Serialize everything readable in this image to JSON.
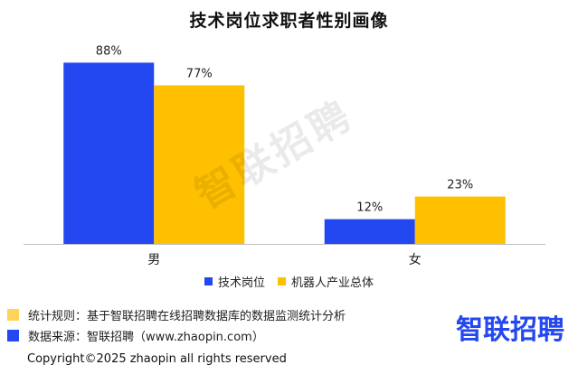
{
  "title": "技术岗位求职者性别画像",
  "chart_data": {
    "type": "bar",
    "title": "技术岗位求职者性别画像",
    "categories": [
      "男",
      "女"
    ],
    "series": [
      {
        "name": "技术岗位",
        "values": [
          88,
          12
        ],
        "labels": [
          "88%",
          "12%"
        ],
        "color": "#2347f0"
      },
      {
        "name": "机器人产业总体",
        "values": [
          77,
          23
        ],
        "labels": [
          "77%",
          "23%"
        ],
        "color": "#fec000"
      }
    ],
    "ylim": [
      0,
      100
    ],
    "grid": false,
    "legend_position": "bottom"
  },
  "notes": [
    {
      "text": "统计规则：基于智联招聘在线招聘数据库的数据监测统计分析",
      "color": "#fed55a"
    },
    {
      "text": "数据来源：智联招聘（www.zhaopin.com）",
      "color": "#2347f0"
    }
  ],
  "brand": {
    "logo_text": "智联招聘",
    "color": "#2347f0"
  },
  "watermark": "智联招聘",
  "copyright": "Copyright©2025 zhaopin all rights reserved"
}
